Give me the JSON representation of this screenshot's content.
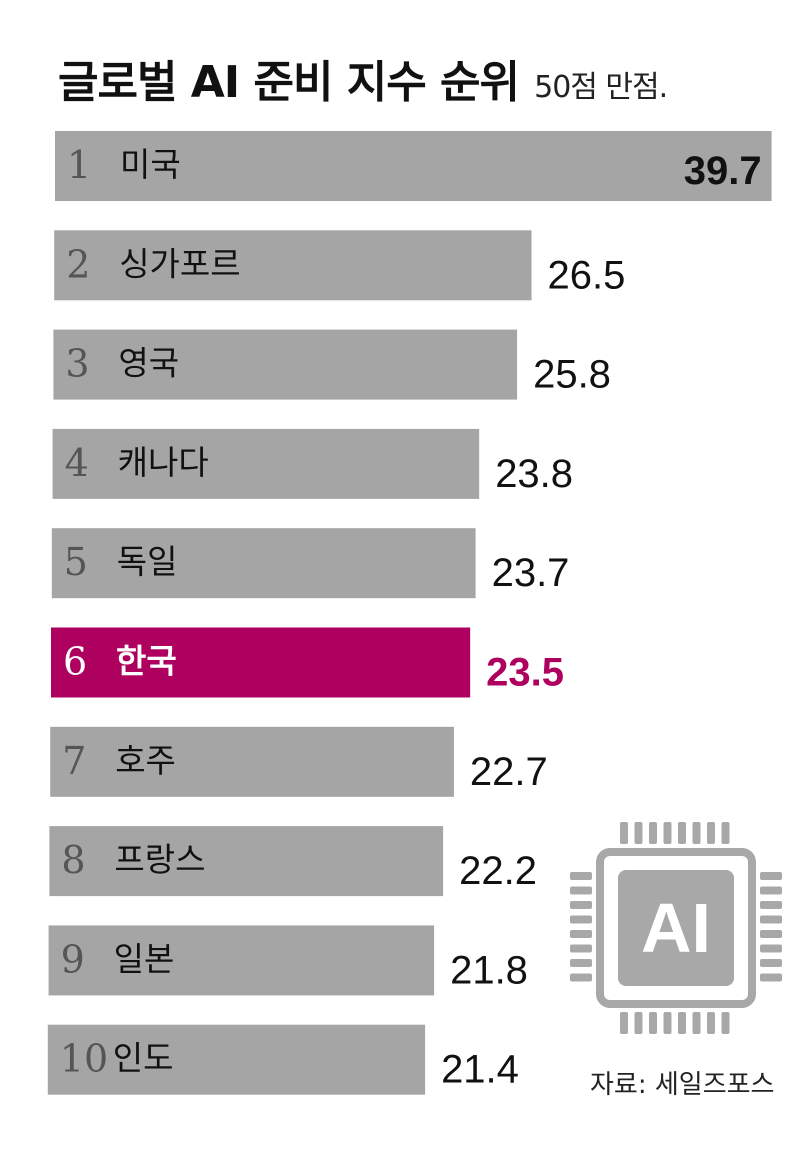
{
  "chart_data": {
    "type": "bar",
    "orientation": "horizontal",
    "title": "글로벌 AI 준비 지수 순위",
    "subtitle": "50점 만점.",
    "ranks": [
      "1",
      "2",
      "3",
      "4",
      "5",
      "6",
      "7",
      "8",
      "9",
      "10"
    ],
    "categories": [
      "미국",
      "싱가포르",
      "영국",
      "캐나다",
      "독일",
      "한국",
      "호주",
      "프랑스",
      "일본",
      "인도"
    ],
    "values": [
      39.7,
      26.5,
      25.8,
      23.8,
      23.7,
      23.5,
      22.7,
      22.2,
      21.8,
      21.4
    ],
    "value_labels": [
      "39.7",
      "26.5",
      "25.8",
      "23.8",
      "23.7",
      "23.5",
      "22.7",
      "22.2",
      "21.8",
      "21.4"
    ],
    "highlight_category": "한국",
    "xlim": [
      0,
      50
    ],
    "grid": false,
    "legend": "none"
  },
  "icon": {
    "name": "ai-chip-icon",
    "label": "AI"
  },
  "source": "자료: 세일즈포스",
  "colors": {
    "bar": "#a5a5a5",
    "bar_highlight": "#ad005f",
    "value_text": "#111111",
    "value_highlight": "#ad005f",
    "rank_text": "#555555",
    "label_text": "#111111",
    "highlight_text": "#ffffff",
    "chip": "#a8a8a8"
  }
}
